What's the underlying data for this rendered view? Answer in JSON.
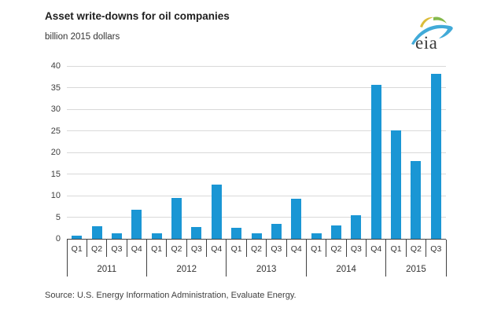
{
  "header": {
    "title": "Asset write-downs for oil companies",
    "subtitle": "billion 2015 dollars",
    "logo_text": "eia"
  },
  "chart_data": {
    "type": "bar",
    "title": "Asset write-downs for oil companies",
    "unit_label": "billion 2015 dollars",
    "bar_color": "#1a96d4",
    "gridline_color": "#d9d9d9",
    "axis_color": "#404040",
    "grid": true,
    "ylim": [
      0,
      40
    ],
    "yticks": [
      0,
      5,
      10,
      15,
      20,
      25,
      30,
      35,
      40
    ],
    "categories": [
      "Q1",
      "Q2",
      "Q3",
      "Q4",
      "Q1",
      "Q2",
      "Q3",
      "Q4",
      "Q1",
      "Q2",
      "Q3",
      "Q4",
      "Q1",
      "Q2",
      "Q3",
      "Q4",
      "Q1",
      "Q2",
      "Q3"
    ],
    "values": [
      0.7,
      3.0,
      1.2,
      6.7,
      1.3,
      9.5,
      2.8,
      12.6,
      2.5,
      1.2,
      3.5,
      9.3,
      1.3,
      3.1,
      5.5,
      35.6,
      25.1,
      18.0,
      38.2
    ],
    "year_groups": [
      {
        "label": "2011",
        "quarters": 4
      },
      {
        "label": "2012",
        "quarters": 4
      },
      {
        "label": "2013",
        "quarters": 4
      },
      {
        "label": "2014",
        "quarters": 4
      },
      {
        "label": "2015",
        "quarters": 3
      }
    ]
  },
  "footer": {
    "source": "Source:  U.S. Energy Information Administration, Evaluate Energy."
  }
}
